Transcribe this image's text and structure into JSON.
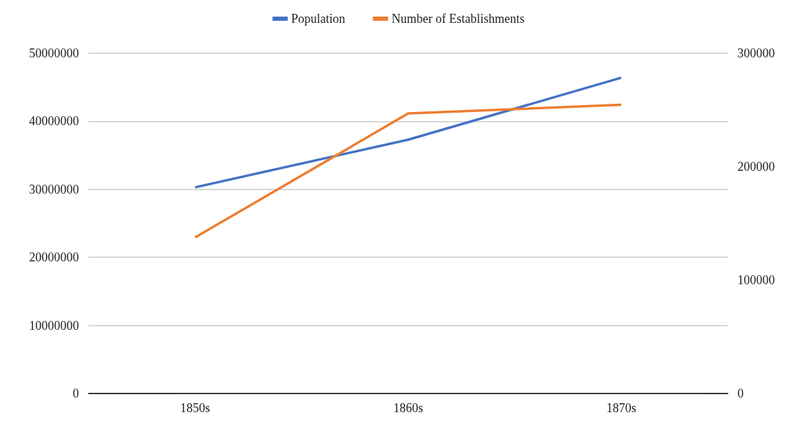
{
  "chart_data": {
    "type": "line",
    "categories": [
      "1850s",
      "1860s",
      "1870s"
    ],
    "series": [
      {
        "name": "Population",
        "color": "#4472c4",
        "values": [
          30300000,
          37300000,
          46400000
        ]
      },
      {
        "name": "Number of Establishments",
        "color": "#ed7d31",
        "values": [
          137600,
          246900,
          254600
        ],
        "axis": "y2"
      }
    ],
    "ylim": [
      0,
      50000000
    ],
    "yticks": [
      0,
      10000000,
      20000000,
      30000000,
      40000000,
      50000000
    ],
    "y2lim": [
      0,
      300000
    ],
    "y2ticks": [
      0,
      100000,
      200000,
      300000
    ],
    "grid": "y",
    "legend": "top",
    "marker": "none"
  }
}
